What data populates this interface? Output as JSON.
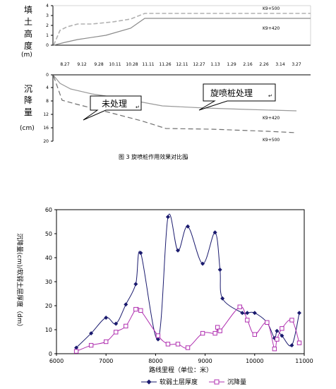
{
  "figure_top": {
    "fill_axis_label": [
      "填",
      "土",
      "高",
      "度",
      "(m)"
    ],
    "settle_axis_label": [
      "沉",
      "降",
      "量",
      "(cm)"
    ],
    "fill_ticks": [
      "4",
      "3",
      "2",
      "1",
      "0"
    ],
    "settle_ticks": [
      "0",
      "4",
      "8",
      "12",
      "16",
      "20"
    ],
    "date_ticks": [
      "8.27",
      "9.12",
      "9.28",
      "10.11",
      "10.28",
      "11.11",
      "11.26",
      "12.11",
      "12.27",
      "1.13",
      "1.29",
      "2.16",
      "2.26",
      "3.14",
      "3.27"
    ],
    "line_labels_fill": [
      "K9+500",
      "K9+420"
    ],
    "line_labels_settle": [
      "K9+420",
      "K9+500"
    ],
    "callout_untreated": "未处理",
    "callout_treated": "旋喷桩处理",
    "caption": "图 3  旋喷桩作用效果对比图",
    "colors": {
      "light": "#b0b0b0",
      "dark": "#707070"
    }
  },
  "chart_data": {
    "type": "line",
    "title": "",
    "xlabel": "路线里程（单位：米）",
    "ylabel": "沉降量(cm)/软弱土层厚度（dm）",
    "xlim": [
      6000,
      11000
    ],
    "ylim": [
      0,
      60
    ],
    "x_ticks": [
      6000,
      7000,
      8000,
      9000,
      10000,
      11000
    ],
    "y_ticks": [
      0,
      10,
      20,
      30,
      40,
      50,
      60
    ],
    "grid": false,
    "legend_position": "bottom",
    "series": [
      {
        "name": "软弱土层厚度",
        "color": "#1a1a6e",
        "marker": "diamond",
        "points": [
          [
            6400,
            2.5
          ],
          [
            6700,
            8.5
          ],
          [
            7000,
            15
          ],
          [
            7200,
            12.5
          ],
          [
            7400,
            20.5
          ],
          [
            7600,
            29
          ],
          [
            7700,
            42
          ],
          [
            8050,
            6
          ],
          [
            8250,
            57
          ],
          [
            8450,
            43
          ],
          [
            8650,
            53
          ],
          [
            8950,
            37.5
          ],
          [
            9200,
            50.5
          ],
          [
            9300,
            35
          ],
          [
            9350,
            23
          ],
          [
            9750,
            17
          ],
          [
            9850,
            17
          ],
          [
            10000,
            17
          ],
          [
            10250,
            13
          ],
          [
            10400,
            6.5
          ],
          [
            10450,
            9.5
          ],
          [
            10550,
            7.5
          ],
          [
            10750,
            3.5
          ],
          [
            10900,
            17
          ]
        ]
      },
      {
        "name": "沉降量",
        "color": "#b030b0",
        "marker": "square",
        "points": [
          [
            6400,
            1
          ],
          [
            6700,
            3.5
          ],
          [
            7000,
            5
          ],
          [
            7200,
            9
          ],
          [
            7400,
            11.5
          ],
          [
            7600,
            18.5
          ],
          [
            7700,
            18
          ],
          [
            8050,
            7.5
          ],
          [
            8250,
            4
          ],
          [
            8450,
            4
          ],
          [
            8650,
            2.5
          ],
          [
            8950,
            8.5
          ],
          [
            9200,
            8.5
          ],
          [
            9250,
            11
          ],
          [
            9300,
            9.5
          ],
          [
            9700,
            19.5
          ],
          [
            9850,
            14
          ],
          [
            10000,
            8
          ],
          [
            10250,
            13
          ],
          [
            10400,
            2
          ],
          [
            10450,
            6
          ],
          [
            10550,
            10.5
          ],
          [
            10750,
            14
          ],
          [
            10900,
            4.5
          ]
        ]
      }
    ]
  }
}
